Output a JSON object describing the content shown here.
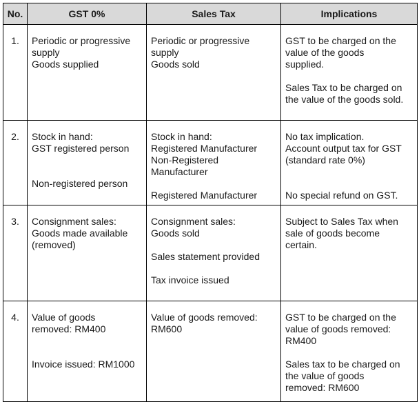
{
  "table": {
    "headers": {
      "no": "No.",
      "gst": "GST 0%",
      "sales_tax": "Sales Tax",
      "implications": "Implications"
    },
    "rows": [
      {
        "no": "1.",
        "gst": [
          "Periodic or progressive",
          "supply",
          "Goods supplied"
        ],
        "sales_tax": [
          "Periodic or progressive",
          "supply",
          "Goods sold"
        ],
        "implications": [
          "GST to be charged on the",
          "value of the goods",
          "supplied.",
          "Sales Tax to be charged on",
          "the value of the goods sold."
        ]
      },
      {
        "no": "2.",
        "gst": [
          "Stock in hand:",
          "GST registered person",
          "Non-registered person"
        ],
        "sales_tax": [
          "Stock in hand:",
          "Registered Manufacturer",
          "Non-Registered",
          "Manufacturer",
          "Registered Manufacturer"
        ],
        "implications": [
          "No tax implication.",
          "Account output tax for GST",
          "(standard rate 0%)",
          "No special refund on GST."
        ]
      },
      {
        "no": "3.",
        "gst": [
          "Consignment sales:",
          "Goods made available",
          "(removed)"
        ],
        "sales_tax": [
          "Consignment sales:",
          "Goods sold",
          "Sales statement provided",
          "Tax invoice issued"
        ],
        "implications": [
          "Subject to Sales Tax when",
          "sale of goods become",
          "certain."
        ]
      },
      {
        "no": "4.",
        "gst": [
          "Value of goods",
          "removed: RM400",
          "Invoice issued: RM1000"
        ],
        "sales_tax": [
          "Value of goods removed:",
          "RM600"
        ],
        "implications": [
          "GST to be charged on the",
          "value of goods removed:",
          "RM400",
          "Sales tax to be charged on",
          "the value of goods",
          "removed: RM600"
        ]
      }
    ]
  }
}
